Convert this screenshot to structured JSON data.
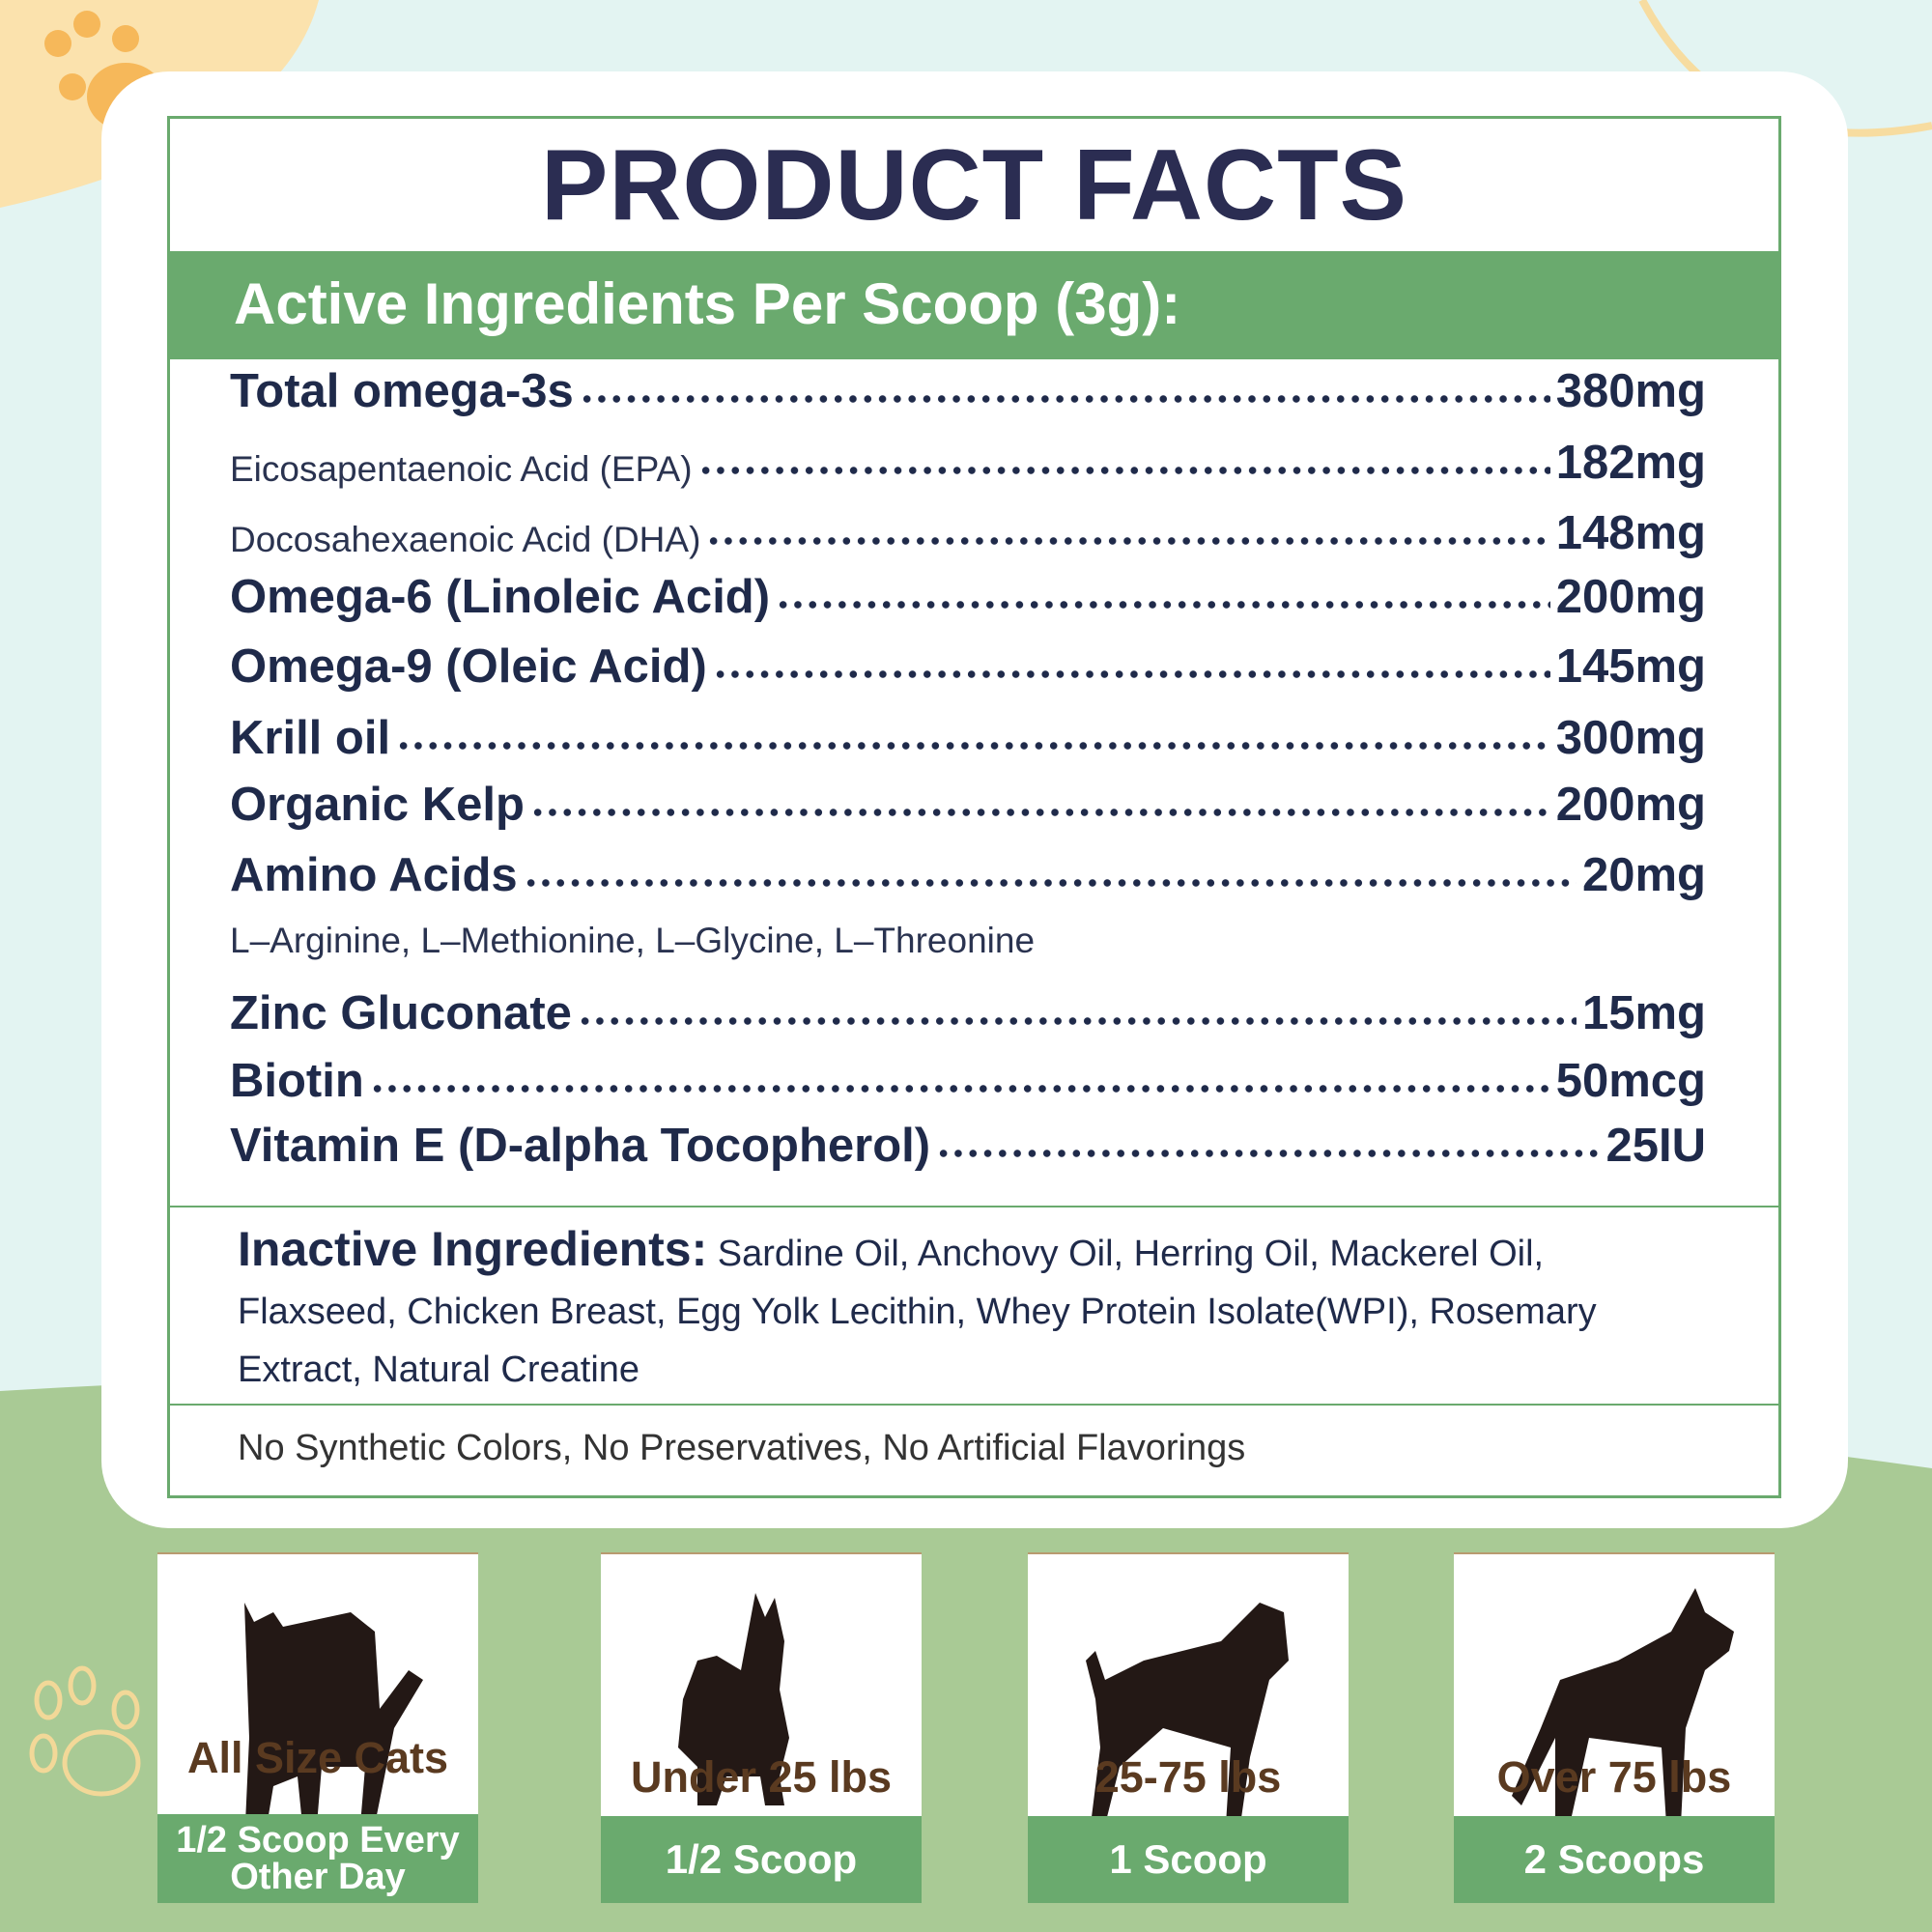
{
  "title": "PRODUCT FACTS",
  "header": "Active Ingredients Per Scoop (3g):",
  "rows": [
    {
      "name": "Total omega-3s",
      "value": "380mg",
      "light": false
    },
    {
      "name": "Eicosapentaenoic Acid (EPA)",
      "value": "182mg",
      "light": true
    },
    {
      "name": "Docosahexaenoic Acid (DHA)",
      "value": "148mg",
      "light": true
    },
    {
      "name": "Omega-6 (Linoleic Acid)",
      "value": "200mg",
      "light": false
    },
    {
      "name": "Omega-9 (Oleic Acid)",
      "value": "145mg",
      "light": false
    },
    {
      "name": "Krill oil",
      "value": "300mg",
      "light": false
    },
    {
      "name": "Organic Kelp",
      "value": "200mg",
      "light": false
    },
    {
      "name": "Amino Acids",
      "value": "20mg",
      "light": false
    },
    {
      "name": "Zinc Gluconate",
      "value": "15mg",
      "light": false
    },
    {
      "name": "Biotin",
      "value": "50mcg",
      "light": false
    },
    {
      "name": "Vitamin E (D-alpha Tocopherol)",
      "value": "25IU",
      "light": false
    }
  ],
  "amino_sub": "L–Arginine, L–Methionine, L–Glycine, L–Threonine",
  "inactive": {
    "label": "Inactive Ingredients:",
    "text": " Sardine Oil, Anchovy Oil, Herring Oil, Mackerel Oil, Flaxseed, Chicken Breast, Egg Yolk Lecithin, Whey Protein Isolate(WPI), Rosemary Extract, Natural Creatine"
  },
  "free_from": "No Synthetic Colors, No Preservatives, No Artificial Flavorings",
  "dosage": [
    {
      "icon": "cat-icon",
      "who": "All Size Cats",
      "amount": "1/2 Scoop Every Other Day"
    },
    {
      "icon": "small-dog-icon",
      "who": "Under 25 lbs",
      "amount": "1/2 Scoop"
    },
    {
      "icon": "medium-dog-icon",
      "who": "25-75 lbs",
      "amount": "1 Scoop"
    },
    {
      "icon": "large-dog-icon",
      "who": "Over 75 lbs",
      "amount": "2 Scoops"
    }
  ],
  "colors": {
    "green": "#6aaa6e",
    "navy": "#2b2d52",
    "brown": "#5a3a20"
  }
}
